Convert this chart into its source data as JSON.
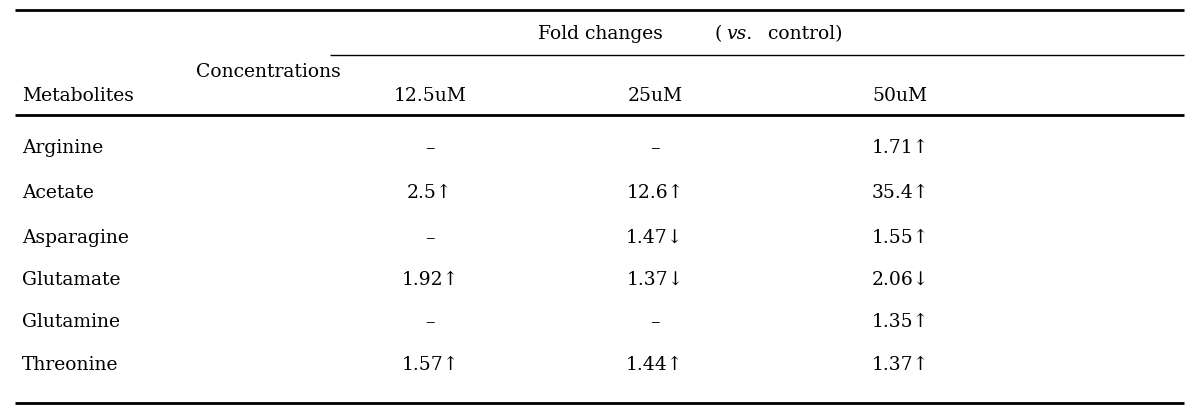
{
  "fold_changes_label": "Fold changes",
  "vs_label": "( vs. control)",
  "concentrations_label": "Concentrations",
  "metabolites_label": "Metabolites",
  "col_headers": [
    "12.5uM",
    "25uM",
    "50uM"
  ],
  "rows": [
    [
      "Arginine",
      "–",
      "–",
      "1.71↑"
    ],
    [
      "Acetate",
      "2.5↑",
      "12.6↑",
      "35.4↑"
    ],
    [
      "Asparagine",
      "–",
      "1.47↓",
      "1.55↑"
    ],
    [
      "Glutamate",
      "1.92↑",
      "1.37↓",
      "2.06↓"
    ],
    [
      "Glutamine",
      "–",
      "–",
      "1.35↑"
    ],
    [
      "Threonine",
      "1.57↑",
      "1.44↑",
      "1.37↑"
    ]
  ],
  "bg_color": "#ffffff",
  "text_color": "#000000",
  "font_family": "DejaVu Serif",
  "font_size": 13.5,
  "font_size_small": 12.5
}
